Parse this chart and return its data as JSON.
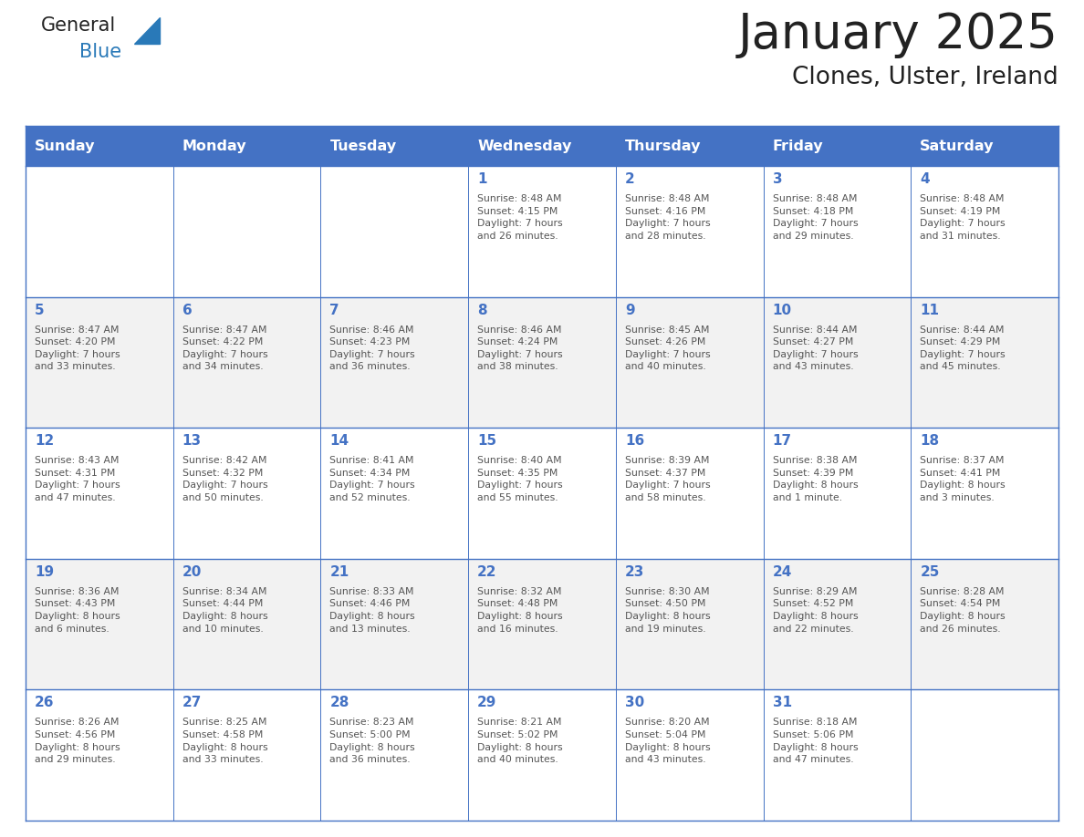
{
  "title": "January 2025",
  "subtitle": "Clones, Ulster, Ireland",
  "header_bg_color": "#4472C4",
  "header_text_color": "#FFFFFF",
  "cell_bg_even": "#FFFFFF",
  "cell_bg_odd": "#F2F2F2",
  "border_color": "#4472C4",
  "title_color": "#222222",
  "subtitle_color": "#222222",
  "day_number_color": "#4472C4",
  "cell_text_color": "#555555",
  "days_of_week": [
    "Sunday",
    "Monday",
    "Tuesday",
    "Wednesday",
    "Thursday",
    "Friday",
    "Saturday"
  ],
  "weeks": [
    [
      {
        "day": null,
        "info": null
      },
      {
        "day": null,
        "info": null
      },
      {
        "day": null,
        "info": null
      },
      {
        "day": 1,
        "info": "Sunrise: 8:48 AM\nSunset: 4:15 PM\nDaylight: 7 hours\nand 26 minutes."
      },
      {
        "day": 2,
        "info": "Sunrise: 8:48 AM\nSunset: 4:16 PM\nDaylight: 7 hours\nand 28 minutes."
      },
      {
        "day": 3,
        "info": "Sunrise: 8:48 AM\nSunset: 4:18 PM\nDaylight: 7 hours\nand 29 minutes."
      },
      {
        "day": 4,
        "info": "Sunrise: 8:48 AM\nSunset: 4:19 PM\nDaylight: 7 hours\nand 31 minutes."
      }
    ],
    [
      {
        "day": 5,
        "info": "Sunrise: 8:47 AM\nSunset: 4:20 PM\nDaylight: 7 hours\nand 33 minutes."
      },
      {
        "day": 6,
        "info": "Sunrise: 8:47 AM\nSunset: 4:22 PM\nDaylight: 7 hours\nand 34 minutes."
      },
      {
        "day": 7,
        "info": "Sunrise: 8:46 AM\nSunset: 4:23 PM\nDaylight: 7 hours\nand 36 minutes."
      },
      {
        "day": 8,
        "info": "Sunrise: 8:46 AM\nSunset: 4:24 PM\nDaylight: 7 hours\nand 38 minutes."
      },
      {
        "day": 9,
        "info": "Sunrise: 8:45 AM\nSunset: 4:26 PM\nDaylight: 7 hours\nand 40 minutes."
      },
      {
        "day": 10,
        "info": "Sunrise: 8:44 AM\nSunset: 4:27 PM\nDaylight: 7 hours\nand 43 minutes."
      },
      {
        "day": 11,
        "info": "Sunrise: 8:44 AM\nSunset: 4:29 PM\nDaylight: 7 hours\nand 45 minutes."
      }
    ],
    [
      {
        "day": 12,
        "info": "Sunrise: 8:43 AM\nSunset: 4:31 PM\nDaylight: 7 hours\nand 47 minutes."
      },
      {
        "day": 13,
        "info": "Sunrise: 8:42 AM\nSunset: 4:32 PM\nDaylight: 7 hours\nand 50 minutes."
      },
      {
        "day": 14,
        "info": "Sunrise: 8:41 AM\nSunset: 4:34 PM\nDaylight: 7 hours\nand 52 minutes."
      },
      {
        "day": 15,
        "info": "Sunrise: 8:40 AM\nSunset: 4:35 PM\nDaylight: 7 hours\nand 55 minutes."
      },
      {
        "day": 16,
        "info": "Sunrise: 8:39 AM\nSunset: 4:37 PM\nDaylight: 7 hours\nand 58 minutes."
      },
      {
        "day": 17,
        "info": "Sunrise: 8:38 AM\nSunset: 4:39 PM\nDaylight: 8 hours\nand 1 minute."
      },
      {
        "day": 18,
        "info": "Sunrise: 8:37 AM\nSunset: 4:41 PM\nDaylight: 8 hours\nand 3 minutes."
      }
    ],
    [
      {
        "day": 19,
        "info": "Sunrise: 8:36 AM\nSunset: 4:43 PM\nDaylight: 8 hours\nand 6 minutes."
      },
      {
        "day": 20,
        "info": "Sunrise: 8:34 AM\nSunset: 4:44 PM\nDaylight: 8 hours\nand 10 minutes."
      },
      {
        "day": 21,
        "info": "Sunrise: 8:33 AM\nSunset: 4:46 PM\nDaylight: 8 hours\nand 13 minutes."
      },
      {
        "day": 22,
        "info": "Sunrise: 8:32 AM\nSunset: 4:48 PM\nDaylight: 8 hours\nand 16 minutes."
      },
      {
        "day": 23,
        "info": "Sunrise: 8:30 AM\nSunset: 4:50 PM\nDaylight: 8 hours\nand 19 minutes."
      },
      {
        "day": 24,
        "info": "Sunrise: 8:29 AM\nSunset: 4:52 PM\nDaylight: 8 hours\nand 22 minutes."
      },
      {
        "day": 25,
        "info": "Sunrise: 8:28 AM\nSunset: 4:54 PM\nDaylight: 8 hours\nand 26 minutes."
      }
    ],
    [
      {
        "day": 26,
        "info": "Sunrise: 8:26 AM\nSunset: 4:56 PM\nDaylight: 8 hours\nand 29 minutes."
      },
      {
        "day": 27,
        "info": "Sunrise: 8:25 AM\nSunset: 4:58 PM\nDaylight: 8 hours\nand 33 minutes."
      },
      {
        "day": 28,
        "info": "Sunrise: 8:23 AM\nSunset: 5:00 PM\nDaylight: 8 hours\nand 36 minutes."
      },
      {
        "day": 29,
        "info": "Sunrise: 8:21 AM\nSunset: 5:02 PM\nDaylight: 8 hours\nand 40 minutes."
      },
      {
        "day": 30,
        "info": "Sunrise: 8:20 AM\nSunset: 5:04 PM\nDaylight: 8 hours\nand 43 minutes."
      },
      {
        "day": 31,
        "info": "Sunrise: 8:18 AM\nSunset: 5:06 PM\nDaylight: 8 hours\nand 47 minutes."
      },
      {
        "day": null,
        "info": null
      }
    ]
  ],
  "logo_general_color": "#222222",
  "logo_blue_color": "#2979B8",
  "logo_triangle_color": "#2979B8",
  "fig_width": 11.88,
  "fig_height": 9.18,
  "dpi": 100
}
